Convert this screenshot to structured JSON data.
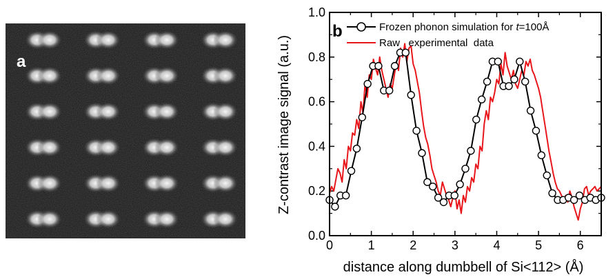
{
  "panel_a": {
    "letter": "a",
    "image_description_name": "Z-contrast STEM image of Si dumbbells",
    "grid": {
      "rows": 6,
      "cols": 4
    },
    "colors": {
      "background": "#151515",
      "spot": "#f0f0f0",
      "letter": "#ffffff"
    }
  },
  "panel_b": {
    "letter": "b"
  },
  "chart_data": {
    "type": "line",
    "xlabel": "distance along dumbbell of Si<112> (Å)",
    "ylabel": "Z-contrast image signal (a.u.)",
    "xlim": [
      0,
      6.5
    ],
    "ylim": [
      0.0,
      1.0
    ],
    "xticks": [
      0,
      1,
      2,
      3,
      4,
      5,
      6
    ],
    "yticks": [
      0.0,
      0.2,
      0.4,
      0.6,
      0.8,
      1.0
    ],
    "ytick_labels": [
      "0.0",
      "0.2",
      "0.4",
      "0.6",
      "0.8",
      "1.0"
    ],
    "legend_placement": "top",
    "grid": false,
    "series": [
      {
        "name_prefix": "Frozen phonon simulation for ",
        "name_var": "t",
        "name_suffix": "=100Å",
        "color": "#000000",
        "marker": "open-circle",
        "x": [
          0.0,
          0.13,
          0.26,
          0.39,
          0.52,
          0.65,
          0.78,
          0.91,
          1.04,
          1.17,
          1.3,
          1.43,
          1.56,
          1.69,
          1.82,
          1.95,
          2.08,
          2.21,
          2.34,
          2.47,
          2.6,
          2.73,
          2.86,
          2.99,
          3.12,
          3.25,
          3.38,
          3.51,
          3.64,
          3.77,
          3.9,
          4.03,
          4.16,
          4.29,
          4.42,
          4.55,
          4.68,
          4.81,
          4.94,
          5.07,
          5.2,
          5.33,
          5.46,
          5.59,
          5.72,
          5.85,
          5.98,
          6.11,
          6.24,
          6.37,
          6.5
        ],
        "y": [
          0.16,
          0.13,
          0.18,
          0.18,
          0.29,
          0.39,
          0.53,
          0.68,
          0.76,
          0.76,
          0.65,
          0.65,
          0.76,
          0.82,
          0.82,
          0.63,
          0.47,
          0.37,
          0.24,
          0.22,
          0.17,
          0.15,
          0.18,
          0.18,
          0.23,
          0.3,
          0.38,
          0.52,
          0.61,
          0.69,
          0.78,
          0.78,
          0.67,
          0.67,
          0.7,
          0.78,
          0.69,
          0.56,
          0.47,
          0.36,
          0.27,
          0.19,
          0.16,
          0.16,
          0.17,
          0.16,
          0.18,
          0.16,
          0.17,
          0.16,
          0.17
        ]
      },
      {
        "name": "Raw   experimental  data",
        "color": "#e8161b",
        "marker": "none",
        "x": [
          0.0,
          0.05,
          0.1,
          0.15,
          0.2,
          0.25,
          0.3,
          0.35,
          0.4,
          0.45,
          0.5,
          0.55,
          0.6,
          0.65,
          0.7,
          0.75,
          0.8,
          0.85,
          0.9,
          0.95,
          1.0,
          1.05,
          1.1,
          1.15,
          1.2,
          1.25,
          1.3,
          1.35,
          1.4,
          1.45,
          1.5,
          1.55,
          1.6,
          1.65,
          1.7,
          1.75,
          1.8,
          1.85,
          1.9,
          1.95,
          2.0,
          2.05,
          2.1,
          2.15,
          2.2,
          2.25,
          2.3,
          2.35,
          2.4,
          2.45,
          2.5,
          2.55,
          2.6,
          2.65,
          2.7,
          2.75,
          2.8,
          2.85,
          2.9,
          2.95,
          3.0,
          3.05,
          3.1,
          3.15,
          3.2,
          3.25,
          3.3,
          3.35,
          3.4,
          3.45,
          3.5,
          3.55,
          3.6,
          3.65,
          3.7,
          3.75,
          3.8,
          3.85,
          3.9,
          3.95,
          4.0,
          4.05,
          4.1,
          4.15,
          4.2,
          4.25,
          4.3,
          4.35,
          4.4,
          4.45,
          4.5,
          4.55,
          4.6,
          4.65,
          4.7,
          4.75,
          4.8,
          4.85,
          4.9,
          4.95,
          5.0,
          5.05,
          5.1,
          5.15,
          5.2,
          5.25,
          5.3,
          5.35,
          5.4,
          5.45,
          5.5,
          5.55,
          5.6,
          5.65,
          5.7,
          5.75,
          5.8,
          5.85,
          5.9,
          5.95,
          6.0,
          6.05,
          6.1,
          6.15,
          6.2,
          6.25,
          6.3,
          6.35,
          6.4,
          6.45,
          6.5
        ],
        "y": [
          0.19,
          0.22,
          0.2,
          0.25,
          0.3,
          0.28,
          0.24,
          0.34,
          0.3,
          0.4,
          0.38,
          0.46,
          0.45,
          0.52,
          0.48,
          0.6,
          0.55,
          0.68,
          0.62,
          0.72,
          0.7,
          0.79,
          0.75,
          0.72,
          0.8,
          0.74,
          0.7,
          0.66,
          0.62,
          0.68,
          0.66,
          0.72,
          0.78,
          0.74,
          0.84,
          0.8,
          0.86,
          0.78,
          0.84,
          0.85,
          0.77,
          0.74,
          0.69,
          0.64,
          0.56,
          0.49,
          0.44,
          0.41,
          0.36,
          0.3,
          0.27,
          0.24,
          0.2,
          0.18,
          0.24,
          0.21,
          0.18,
          0.16,
          0.13,
          0.17,
          0.2,
          0.12,
          0.16,
          0.1,
          0.18,
          0.15,
          0.22,
          0.2,
          0.26,
          0.24,
          0.32,
          0.3,
          0.4,
          0.38,
          0.5,
          0.56,
          0.52,
          0.62,
          0.6,
          0.64,
          0.7,
          0.68,
          0.77,
          0.72,
          0.82,
          0.76,
          0.73,
          0.7,
          0.74,
          0.68,
          0.66,
          0.7,
          0.74,
          0.72,
          0.78,
          0.76,
          0.79,
          0.74,
          0.72,
          0.69,
          0.66,
          0.62,
          0.56,
          0.5,
          0.44,
          0.38,
          0.33,
          0.28,
          0.24,
          0.21,
          0.2,
          0.18,
          0.16,
          0.18,
          0.15,
          0.2,
          0.17,
          0.13,
          0.1,
          0.07,
          0.12,
          0.15,
          0.21,
          0.22,
          0.18,
          0.2,
          0.21,
          0.22,
          0.2,
          0.21,
          0.22
        ]
      }
    ]
  }
}
